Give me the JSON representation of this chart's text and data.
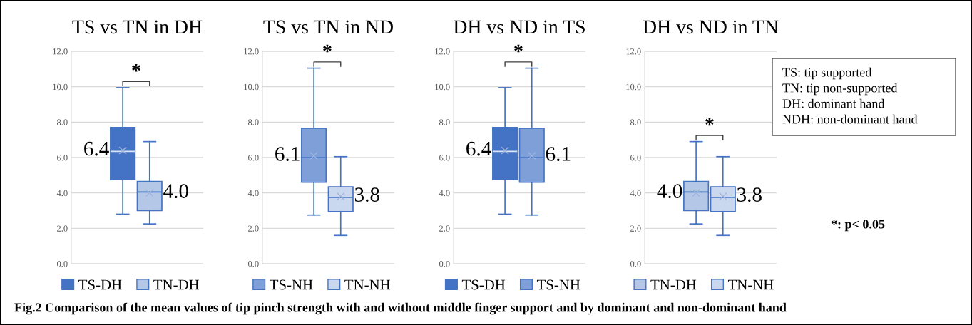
{
  "chart_data": [
    {
      "type": "box",
      "title": "TS vs TN in DH",
      "categories": [
        null
      ],
      "ylim": [
        0,
        12
      ],
      "yticks": [
        {
          "value": 0,
          "label": "0.0"
        },
        {
          "value": 2,
          "label": "2.0"
        },
        {
          "value": 4,
          "label": "4.0"
        },
        {
          "value": 6,
          "label": "6.0"
        },
        {
          "value": 8,
          "label": "8.0"
        },
        {
          "value": 10,
          "label": "10.0"
        },
        {
          "value": 12,
          "label": "12.0"
        }
      ],
      "grid": "y",
      "legend": "bottom",
      "annotations": [
        "*"
      ],
      "series": [
        {
          "name": "TS-DH",
          "color": "#4472c4",
          "boxes": [
            {
              "low": 2.8,
              "q1": 4.75,
              "median": 6.35,
              "q3": 7.7,
              "high": 9.95,
              "mean": 6.4
            }
          ],
          "value_labels": [
            "6.4"
          ]
        },
        {
          "name": "TN-DH",
          "color": "#b4c7e7",
          "boxes": [
            {
              "low": 2.25,
              "q1": 3.0,
              "median": 4.05,
              "q3": 4.65,
              "high": 6.9,
              "mean": 4.0
            }
          ],
          "value_labels": [
            "4.0"
          ]
        }
      ]
    },
    {
      "type": "box",
      "title": "TS vs TN in ND",
      "categories": [
        null
      ],
      "ylim": [
        0,
        12
      ],
      "yticks": [
        {
          "value": 0,
          "label": "0.0"
        },
        {
          "value": 2,
          "label": "2.0"
        },
        {
          "value": 4,
          "label": "4.0"
        },
        {
          "value": 6,
          "label": "6.0"
        },
        {
          "value": 8,
          "label": "8.0"
        },
        {
          "value": 10,
          "label": "10.0"
        },
        {
          "value": 12,
          "label": "12.0"
        }
      ],
      "grid": "y",
      "legend": "bottom",
      "annotations": [
        "*"
      ],
      "series": [
        {
          "name": "TS-NH",
          "color": "#7f9fd8",
          "boxes": [
            {
              "low": 2.75,
              "q1": 4.6,
              "median": 6.0,
              "q3": 7.65,
              "high": 11.05,
              "mean": 6.1
            }
          ],
          "value_labels": [
            "6.1"
          ]
        },
        {
          "name": "TN-NH",
          "color": "#c9d7ef",
          "boxes": [
            {
              "low": 1.6,
              "q1": 2.95,
              "median": 3.75,
              "q3": 4.35,
              "high": 6.05,
              "mean": 3.8
            }
          ],
          "value_labels": [
            "3.8"
          ]
        }
      ]
    },
    {
      "type": "box",
      "title": "DH vs ND in TS",
      "categories": [
        null
      ],
      "ylim": [
        0,
        12
      ],
      "yticks": [
        {
          "value": 0,
          "label": "0.0"
        },
        {
          "value": 2,
          "label": "2.0"
        },
        {
          "value": 4,
          "label": "4.0"
        },
        {
          "value": 6,
          "label": "6.0"
        },
        {
          "value": 8,
          "label": "8.0"
        },
        {
          "value": 10,
          "label": "10.0"
        },
        {
          "value": 12,
          "label": "12.0"
        }
      ],
      "grid": "y",
      "legend": "bottom",
      "annotations": [
        "*"
      ],
      "series": [
        {
          "name": "TS-DH",
          "color": "#4472c4",
          "boxes": [
            {
              "low": 2.8,
              "q1": 4.75,
              "median": 6.35,
              "q3": 7.7,
              "high": 9.95,
              "mean": 6.4
            }
          ],
          "value_labels": [
            "6.4"
          ]
        },
        {
          "name": "TS-NH",
          "color": "#7f9fd8",
          "boxes": [
            {
              "low": 2.75,
              "q1": 4.6,
              "median": 6.0,
              "q3": 7.65,
              "high": 11.05,
              "mean": 6.1
            }
          ],
          "value_labels": [
            "6.1"
          ]
        }
      ]
    },
    {
      "type": "box",
      "title": "DH vs ND in TN",
      "categories": [
        null
      ],
      "ylim": [
        0,
        12
      ],
      "yticks": [
        {
          "value": 0,
          "label": "0.0"
        },
        {
          "value": 2,
          "label": "2.0"
        },
        {
          "value": 4,
          "label": "4.0"
        },
        {
          "value": 6,
          "label": "6.0"
        },
        {
          "value": 8,
          "label": "8.0"
        },
        {
          "value": 10,
          "label": "10.0"
        },
        {
          "value": 12,
          "label": "12.0"
        }
      ],
      "grid": "y",
      "legend": "bottom",
      "annotations": [
        "*"
      ],
      "series": [
        {
          "name": "TN-DH",
          "color": "#b4c7e7",
          "boxes": [
            {
              "low": 2.25,
              "q1": 3.0,
              "median": 4.05,
              "q3": 4.65,
              "high": 6.9,
              "mean": 4.0
            }
          ],
          "value_labels": [
            "4.0"
          ]
        },
        {
          "name": "TN-NH",
          "color": "#c9d7ef",
          "boxes": [
            {
              "low": 1.6,
              "q1": 2.95,
              "median": 3.75,
              "q3": 4.35,
              "high": 6.05,
              "mean": 3.8
            }
          ],
          "value_labels": [
            "3.8"
          ]
        }
      ]
    },
    {
      "type": "other",
      "annotations": [
        "TS: tip supported",
        "TN: tip non-supported",
        "DH: dominant hand",
        "NDH: non-dominant hand",
        "*: p< 0.05",
        "Fig.2 Comparison of the mean values of tip pinch strength with and without middle finger support and by dominant and non-dominant hand"
      ]
    }
  ]
}
